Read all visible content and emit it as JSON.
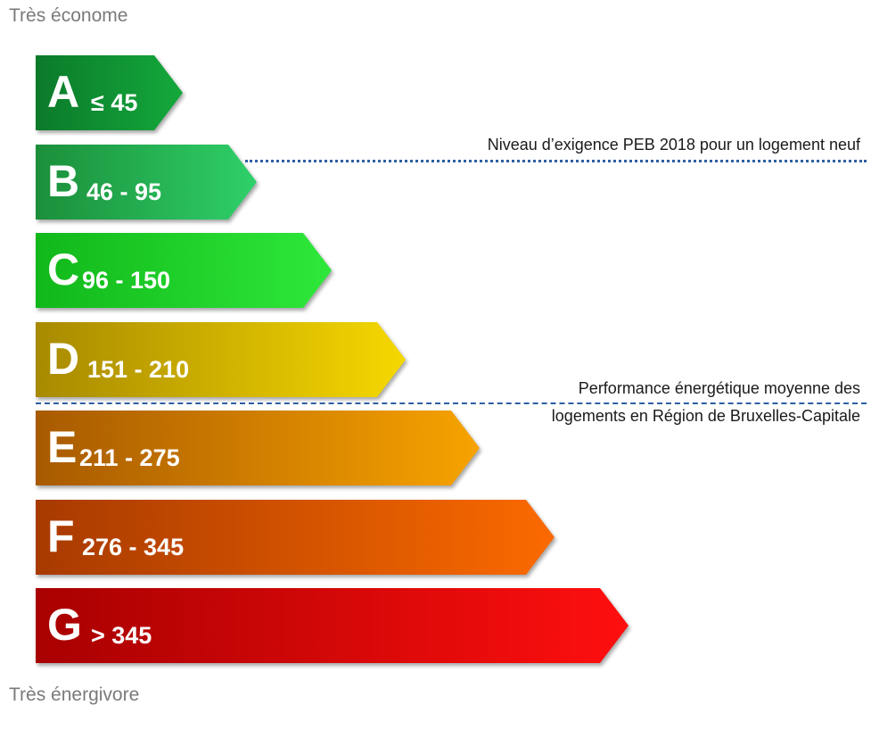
{
  "labels": {
    "top": "Très économe",
    "bottom": "Très énergivore"
  },
  "classes": [
    {
      "letter": "A",
      "range": "≤ 45",
      "colors": [
        "#0b7a2a",
        "#14a83c"
      ]
    },
    {
      "letter": "B",
      "range": "46 - 95",
      "colors": [
        "#1b8f3a",
        "#2fd06a"
      ]
    },
    {
      "letter": "C",
      "range": "96 - 150",
      "colors": [
        "#11b81a",
        "#2ee83a"
      ]
    },
    {
      "letter": "D",
      "range": "151 - 210",
      "colors": [
        "#a88a00",
        "#f5d800"
      ]
    },
    {
      "letter": "E",
      "range": "211 - 275",
      "colors": [
        "#a85a00",
        "#f7a300"
      ]
    },
    {
      "letter": "F",
      "range": "276 - 345",
      "colors": [
        "#a83a00",
        "#fb6a00"
      ]
    },
    {
      "letter": "G",
      "range": "> 345",
      "colors": [
        "#a80000",
        "#ff0f0f"
      ]
    }
  ],
  "annotations": {
    "peb_2018": "Niveau d’exigence PEB 2018 pour un logement neuf",
    "average_line1": "Performance énergétique moyenne des",
    "average_line2": "logements en Région de Bruxelles-Capitale"
  }
}
